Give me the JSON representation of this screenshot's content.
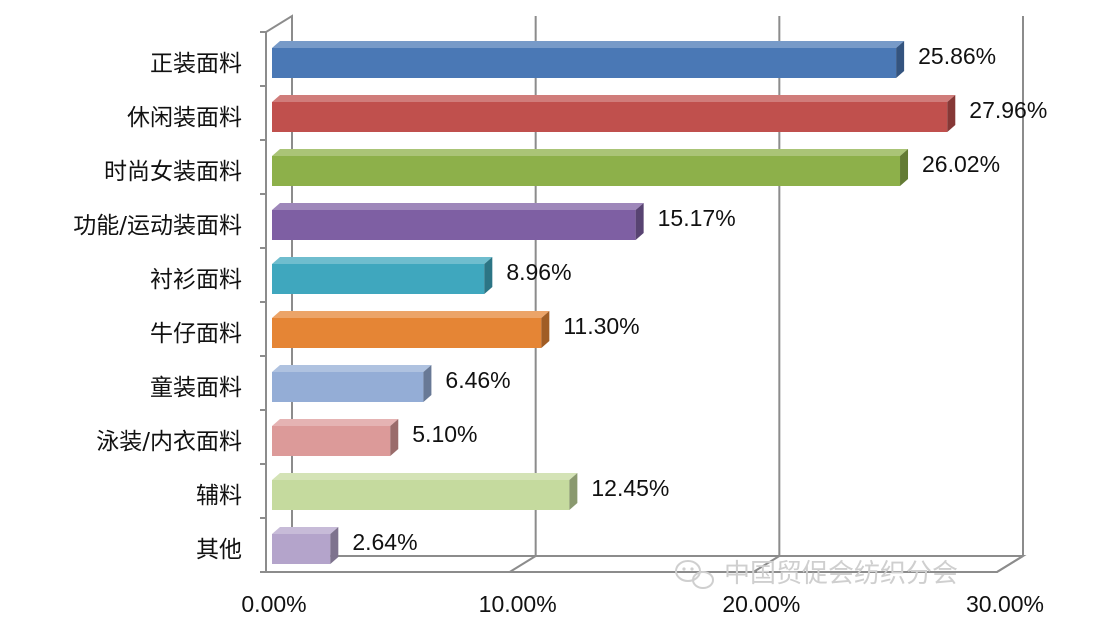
{
  "chart_data": {
    "type": "bar",
    "orientation": "horizontal",
    "title": "",
    "xlabel": "",
    "ylabel": "",
    "xlim": [
      0,
      30
    ],
    "x_ticks": [
      "0.00%",
      "10.00%",
      "20.00%",
      "30.00%"
    ],
    "x_tick_values": [
      0,
      10,
      20,
      30
    ],
    "grid": true,
    "legend": "none",
    "categories": [
      "正装面料",
      "休闲装面料",
      "时尚女装面料",
      "功能/运动装面料",
      "衬衫面料",
      "牛仔面料",
      "童装面料",
      "泳装/内衣面料",
      "辅料",
      "其他"
    ],
    "values": [
      25.86,
      27.96,
      26.02,
      15.17,
      8.96,
      11.3,
      6.46,
      5.1,
      12.45,
      2.64
    ],
    "value_labels": [
      "25.86%",
      "27.96%",
      "26.02%",
      "15.17%",
      "8.96%",
      "11.30%",
      "6.46%",
      "5.10%",
      "12.45%",
      "2.64%"
    ],
    "colors": [
      "#4A78B5",
      "#C0504D",
      "#8DB04A",
      "#7E5FA3",
      "#3FA7BE",
      "#E58535",
      "#94ADD6",
      "#DC9A99",
      "#C5DA9E",
      "#B4A4CB"
    ]
  },
  "watermark": {
    "text": "中国贸促会纺织分会",
    "icon": "wechat-icon"
  }
}
